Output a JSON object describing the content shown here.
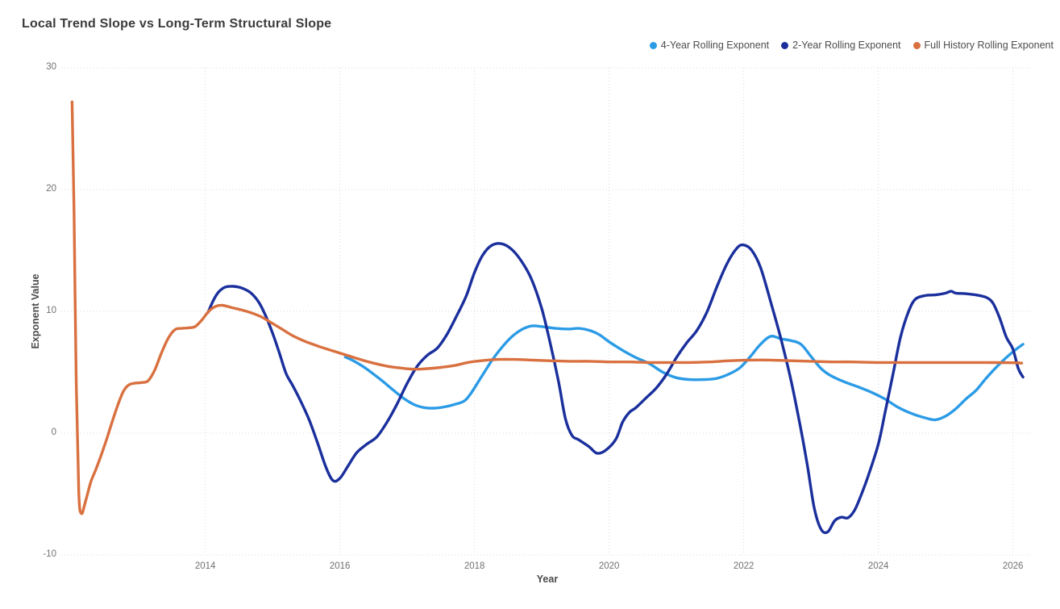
{
  "title": "Local Trend Slope vs Long-Term Structural Slope",
  "chart_data": {
    "type": "line",
    "title": "Local Trend Slope vs Long-Term Structural Slope",
    "xlabel": "Year",
    "ylabel": "Exponent Value",
    "legend_position": "top-right",
    "grid": "dotted",
    "grid_color": "#d9d9d9",
    "xlim": [
      2011.86,
      2026.28
    ],
    "ylim": [
      -10,
      30
    ],
    "x_ticks": [
      2014,
      2016,
      2018,
      2020,
      2022,
      2024,
      2026
    ],
    "y_ticks": [
      -10,
      0,
      10,
      20,
      30
    ],
    "series": [
      {
        "name": "4-Year Rolling Exponent",
        "color": "#2B9BE6",
        "points": [
          [
            2016.08,
            6.25
          ],
          [
            2016.2,
            5.95
          ],
          [
            2016.35,
            5.45
          ],
          [
            2016.5,
            4.85
          ],
          [
            2016.65,
            4.2
          ],
          [
            2016.8,
            3.5
          ],
          [
            2016.95,
            2.85
          ],
          [
            2017.1,
            2.35
          ],
          [
            2017.25,
            2.1
          ],
          [
            2017.4,
            2.05
          ],
          [
            2017.55,
            2.15
          ],
          [
            2017.7,
            2.35
          ],
          [
            2017.85,
            2.65
          ],
          [
            2017.95,
            3.3
          ],
          [
            2018.1,
            4.6
          ],
          [
            2018.25,
            5.9
          ],
          [
            2018.4,
            7.0
          ],
          [
            2018.55,
            7.9
          ],
          [
            2018.7,
            8.5
          ],
          [
            2018.85,
            8.8
          ],
          [
            2019.0,
            8.75
          ],
          [
            2019.2,
            8.6
          ],
          [
            2019.4,
            8.55
          ],
          [
            2019.55,
            8.6
          ],
          [
            2019.7,
            8.45
          ],
          [
            2019.85,
            8.1
          ],
          [
            2020.0,
            7.5
          ],
          [
            2020.2,
            6.8
          ],
          [
            2020.4,
            6.2
          ],
          [
            2020.6,
            5.7
          ],
          [
            2020.8,
            5.0
          ],
          [
            2021.0,
            4.55
          ],
          [
            2021.2,
            4.4
          ],
          [
            2021.4,
            4.4
          ],
          [
            2021.6,
            4.5
          ],
          [
            2021.8,
            4.9
          ],
          [
            2021.95,
            5.4
          ],
          [
            2022.1,
            6.3
          ],
          [
            2022.25,
            7.3
          ],
          [
            2022.4,
            7.95
          ],
          [
            2022.55,
            7.75
          ],
          [
            2022.7,
            7.6
          ],
          [
            2022.85,
            7.3
          ],
          [
            2023.0,
            6.3
          ],
          [
            2023.15,
            5.3
          ],
          [
            2023.3,
            4.7
          ],
          [
            2023.5,
            4.2
          ],
          [
            2023.7,
            3.8
          ],
          [
            2023.9,
            3.35
          ],
          [
            2024.1,
            2.8
          ],
          [
            2024.3,
            2.1
          ],
          [
            2024.5,
            1.6
          ],
          [
            2024.7,
            1.25
          ],
          [
            2024.85,
            1.1
          ],
          [
            2025.0,
            1.4
          ],
          [
            2025.15,
            2.0
          ],
          [
            2025.3,
            2.8
          ],
          [
            2025.45,
            3.5
          ],
          [
            2025.6,
            4.5
          ],
          [
            2025.75,
            5.4
          ],
          [
            2025.9,
            6.2
          ],
          [
            2026.05,
            6.9
          ],
          [
            2026.15,
            7.3
          ]
        ]
      },
      {
        "name": "2-Year Rolling Exponent",
        "color": "#1A2F9C",
        "points": [
          [
            2014.04,
            9.9
          ],
          [
            2014.12,
            10.9
          ],
          [
            2014.2,
            11.6
          ],
          [
            2014.3,
            12.0
          ],
          [
            2014.42,
            12.05
          ],
          [
            2014.55,
            11.9
          ],
          [
            2014.68,
            11.5
          ],
          [
            2014.8,
            10.7
          ],
          [
            2014.9,
            9.6
          ],
          [
            2015.0,
            8.2
          ],
          [
            2015.1,
            6.6
          ],
          [
            2015.2,
            4.9
          ],
          [
            2015.3,
            3.9
          ],
          [
            2015.42,
            2.6
          ],
          [
            2015.55,
            1.0
          ],
          [
            2015.68,
            -1.0
          ],
          [
            2015.8,
            -2.9
          ],
          [
            2015.9,
            -3.9
          ],
          [
            2016.0,
            -3.7
          ],
          [
            2016.12,
            -2.7
          ],
          [
            2016.25,
            -1.6
          ],
          [
            2016.4,
            -0.9
          ],
          [
            2016.55,
            -0.3
          ],
          [
            2016.7,
            0.9
          ],
          [
            2016.85,
            2.4
          ],
          [
            2017.0,
            4.1
          ],
          [
            2017.15,
            5.5
          ],
          [
            2017.3,
            6.4
          ],
          [
            2017.45,
            7.0
          ],
          [
            2017.6,
            8.2
          ],
          [
            2017.75,
            9.8
          ],
          [
            2017.88,
            11.3
          ],
          [
            2018.0,
            13.2
          ],
          [
            2018.12,
            14.6
          ],
          [
            2018.25,
            15.4
          ],
          [
            2018.4,
            15.55
          ],
          [
            2018.55,
            15.1
          ],
          [
            2018.7,
            14.1
          ],
          [
            2018.85,
            12.6
          ],
          [
            2019.0,
            10.2
          ],
          [
            2019.12,
            7.5
          ],
          [
            2019.25,
            4.2
          ],
          [
            2019.35,
            1.2
          ],
          [
            2019.45,
            -0.2
          ],
          [
            2019.55,
            -0.55
          ],
          [
            2019.7,
            -1.1
          ],
          [
            2019.82,
            -1.65
          ],
          [
            2019.95,
            -1.4
          ],
          [
            2020.1,
            -0.5
          ],
          [
            2020.2,
            0.9
          ],
          [
            2020.3,
            1.7
          ],
          [
            2020.4,
            2.1
          ],
          [
            2020.55,
            2.9
          ],
          [
            2020.7,
            3.7
          ],
          [
            2020.85,
            4.8
          ],
          [
            2021.0,
            6.2
          ],
          [
            2021.15,
            7.4
          ],
          [
            2021.3,
            8.4
          ],
          [
            2021.45,
            9.9
          ],
          [
            2021.6,
            12.0
          ],
          [
            2021.75,
            13.9
          ],
          [
            2021.9,
            15.2
          ],
          [
            2022.0,
            15.45
          ],
          [
            2022.12,
            15.0
          ],
          [
            2022.25,
            13.6
          ],
          [
            2022.4,
            10.8
          ],
          [
            2022.55,
            7.8
          ],
          [
            2022.7,
            4.4
          ],
          [
            2022.85,
            0.3
          ],
          [
            2022.95,
            -2.8
          ],
          [
            2023.05,
            -6.2
          ],
          [
            2023.15,
            -7.9
          ],
          [
            2023.25,
            -8.1
          ],
          [
            2023.35,
            -7.2
          ],
          [
            2023.45,
            -6.9
          ],
          [
            2023.55,
            -6.95
          ],
          [
            2023.65,
            -6.3
          ],
          [
            2023.75,
            -5.0
          ],
          [
            2023.85,
            -3.5
          ],
          [
            2024.0,
            -0.9
          ],
          [
            2024.1,
            1.7
          ],
          [
            2024.22,
            4.9
          ],
          [
            2024.33,
            7.9
          ],
          [
            2024.45,
            10.0
          ],
          [
            2024.55,
            11.0
          ],
          [
            2024.7,
            11.3
          ],
          [
            2024.85,
            11.35
          ],
          [
            2025.0,
            11.5
          ],
          [
            2025.08,
            11.65
          ],
          [
            2025.15,
            11.5
          ],
          [
            2025.3,
            11.45
          ],
          [
            2025.45,
            11.35
          ],
          [
            2025.6,
            11.15
          ],
          [
            2025.7,
            10.7
          ],
          [
            2025.8,
            9.5
          ],
          [
            2025.9,
            7.9
          ],
          [
            2026.0,
            6.9
          ],
          [
            2026.08,
            5.3
          ],
          [
            2026.15,
            4.6
          ]
        ]
      },
      {
        "name": "Full History Rolling Exponent",
        "color": "#D9703F",
        "points": [
          [
            2012.02,
            27.2
          ],
          [
            2012.05,
            18.0
          ],
          [
            2012.08,
            5.0
          ],
          [
            2012.12,
            -4.8
          ],
          [
            2012.16,
            -6.6
          ],
          [
            2012.22,
            -5.6
          ],
          [
            2012.3,
            -4.0
          ],
          [
            2012.38,
            -2.9
          ],
          [
            2012.46,
            -1.7
          ],
          [
            2012.54,
            -0.4
          ],
          [
            2012.62,
            1.0
          ],
          [
            2012.7,
            2.3
          ],
          [
            2012.78,
            3.4
          ],
          [
            2012.86,
            3.95
          ],
          [
            2012.95,
            4.1
          ],
          [
            2013.05,
            4.15
          ],
          [
            2013.15,
            4.3
          ],
          [
            2013.25,
            5.2
          ],
          [
            2013.35,
            6.6
          ],
          [
            2013.45,
            7.8
          ],
          [
            2013.55,
            8.5
          ],
          [
            2013.65,
            8.6
          ],
          [
            2013.75,
            8.65
          ],
          [
            2013.85,
            8.75
          ],
          [
            2013.95,
            9.3
          ],
          [
            2014.05,
            10.0
          ],
          [
            2014.15,
            10.4
          ],
          [
            2014.25,
            10.5
          ],
          [
            2014.4,
            10.3
          ],
          [
            2014.55,
            10.1
          ],
          [
            2014.7,
            9.85
          ],
          [
            2014.85,
            9.5
          ],
          [
            2015.0,
            9.0
          ],
          [
            2015.15,
            8.5
          ],
          [
            2015.3,
            8.0
          ],
          [
            2015.5,
            7.5
          ],
          [
            2015.7,
            7.1
          ],
          [
            2015.9,
            6.75
          ],
          [
            2016.1,
            6.4
          ],
          [
            2016.3,
            6.05
          ],
          [
            2016.5,
            5.75
          ],
          [
            2016.7,
            5.5
          ],
          [
            2016.9,
            5.35
          ],
          [
            2017.1,
            5.25
          ],
          [
            2017.3,
            5.3
          ],
          [
            2017.5,
            5.4
          ],
          [
            2017.7,
            5.55
          ],
          [
            2017.9,
            5.8
          ],
          [
            2018.1,
            5.95
          ],
          [
            2018.35,
            6.05
          ],
          [
            2018.6,
            6.05
          ],
          [
            2018.85,
            6.0
          ],
          [
            2019.1,
            5.95
          ],
          [
            2019.4,
            5.9
          ],
          [
            2019.7,
            5.9
          ],
          [
            2020.0,
            5.85
          ],
          [
            2020.3,
            5.85
          ],
          [
            2020.6,
            5.8
          ],
          [
            2020.9,
            5.8
          ],
          [
            2021.2,
            5.8
          ],
          [
            2021.5,
            5.85
          ],
          [
            2021.8,
            5.95
          ],
          [
            2022.1,
            6.0
          ],
          [
            2022.4,
            6.0
          ],
          [
            2022.7,
            5.95
          ],
          [
            2023.0,
            5.9
          ],
          [
            2023.3,
            5.85
          ],
          [
            2023.6,
            5.85
          ],
          [
            2024.0,
            5.8
          ],
          [
            2024.4,
            5.8
          ],
          [
            2024.8,
            5.8
          ],
          [
            2025.2,
            5.8
          ],
          [
            2025.6,
            5.8
          ],
          [
            2026.0,
            5.78
          ],
          [
            2026.13,
            5.75
          ]
        ]
      }
    ]
  }
}
